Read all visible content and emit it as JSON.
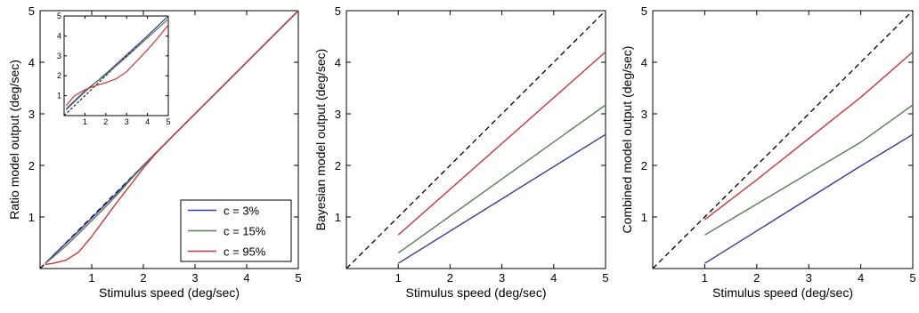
{
  "chart_data": [
    {
      "type": "line",
      "xlabel": "Stimulus speed (deg/sec)",
      "ylabel": "Ratio model output (deg/sec)",
      "xlim": [
        0,
        5
      ],
      "ylim": [
        0,
        5
      ],
      "xticks": [
        "1",
        "2",
        "3",
        "4",
        "5"
      ],
      "yticks": [
        "1",
        "2",
        "3",
        "4",
        "5"
      ],
      "grid": false,
      "identity_line": true,
      "legend": {
        "placement": "bottom-right",
        "entries": [
          "c = 3%",
          "c = 15%",
          "c = 95%"
        ]
      },
      "series": [
        {
          "name": "c = 3%",
          "color": "#3a3a9a",
          "x": [
            0.1,
            0.25,
            0.5,
            0.75,
            1.0,
            1.25,
            1.5,
            1.75,
            2.0,
            2.5,
            3.0,
            4.0,
            5.0
          ],
          "y": [
            0.1,
            0.25,
            0.49,
            0.73,
            0.98,
            1.23,
            1.48,
            1.74,
            2.0,
            2.5,
            3.0,
            4.0,
            5.0
          ]
        },
        {
          "name": "c = 15%",
          "color": "#5a7a5a",
          "x": [
            0.1,
            0.25,
            0.5,
            0.75,
            1.0,
            1.25,
            1.5,
            1.75,
            2.0,
            2.5,
            3.0,
            4.0,
            5.0
          ],
          "y": [
            0.1,
            0.22,
            0.44,
            0.68,
            0.93,
            1.18,
            1.44,
            1.72,
            1.99,
            2.5,
            3.0,
            4.0,
            5.0
          ]
        },
        {
          "name": "c = 95%",
          "color": "#c8373a",
          "x": [
            0.1,
            0.25,
            0.5,
            0.75,
            1.0,
            1.25,
            1.5,
            1.75,
            2.0,
            2.25,
            2.5,
            3.0,
            4.0,
            5.0
          ],
          "y": [
            0.08,
            0.1,
            0.16,
            0.32,
            0.62,
            0.96,
            1.3,
            1.62,
            1.95,
            2.24,
            2.5,
            3.0,
            4.0,
            5.0
          ]
        }
      ],
      "inset": {
        "xlim": [
          0,
          5
        ],
        "ylim": [
          0,
          5
        ],
        "xticks": [
          "1",
          "2",
          "3",
          "4",
          "5"
        ],
        "yticks": [
          "1",
          "2",
          "3",
          "4",
          "5"
        ],
        "identity_line": true,
        "series": [
          {
            "name": "c = 3%",
            "color": "#3a3a9a",
            "x": [
              0.1,
              1,
              2,
              3,
              4,
              5
            ],
            "y": [
              0.3,
              1.2,
              2.1,
              3.05,
              4.0,
              5.0
            ]
          },
          {
            "name": "c = 15%",
            "color": "#5a7a5a",
            "x": [
              0.1,
              1,
              2,
              3,
              4,
              5
            ],
            "y": [
              0.35,
              1.25,
              2.05,
              2.95,
              3.9,
              4.85
            ]
          },
          {
            "name": "c = 95%",
            "color": "#c8373a",
            "x": [
              0.1,
              0.5,
              1,
              1.5,
              2,
              2.5,
              3,
              3.5,
              4,
              4.5,
              5
            ],
            "y": [
              0.5,
              1.0,
              1.3,
              1.5,
              1.65,
              1.85,
              2.2,
              2.75,
              3.3,
              3.9,
              4.55
            ]
          }
        ]
      }
    },
    {
      "type": "line",
      "xlabel": "Stimulus speed (deg/sec)",
      "ylabel": "Bayesian model output (deg/sec)",
      "xlim": [
        0,
        5
      ],
      "ylim": [
        0,
        5
      ],
      "xticks": [
        "1",
        "2",
        "3",
        "4",
        "5"
      ],
      "yticks": [
        "1",
        "2",
        "3",
        "4",
        "5"
      ],
      "grid": false,
      "identity_line": true,
      "series": [
        {
          "name": "c = 3%",
          "color": "#3a3a9a",
          "x": [
            1,
            5
          ],
          "y": [
            0.1,
            2.6
          ]
        },
        {
          "name": "c = 15%",
          "color": "#5a7a5a",
          "x": [
            1,
            5
          ],
          "y": [
            0.3,
            3.17
          ]
        },
        {
          "name": "c = 95%",
          "color": "#c8373a",
          "x": [
            1,
            5
          ],
          "y": [
            0.65,
            4.2
          ]
        }
      ]
    },
    {
      "type": "line",
      "xlabel": "Stimulus speed (deg/sec)",
      "ylabel": "Combined model output (deg/sec)",
      "xlim": [
        0,
        5
      ],
      "ylim": [
        0,
        5
      ],
      "xticks": [
        "1",
        "2",
        "3",
        "4",
        "5"
      ],
      "yticks": [
        "1",
        "2",
        "3",
        "4",
        "5"
      ],
      "grid": false,
      "identity_line": true,
      "series": [
        {
          "name": "c = 3%",
          "color": "#3a3a9a",
          "x": [
            1,
            2,
            3,
            4,
            5
          ],
          "y": [
            0.1,
            0.73,
            1.36,
            1.99,
            2.6
          ]
        },
        {
          "name": "c = 15%",
          "color": "#5a7a5a",
          "x": [
            1,
            2,
            3,
            4,
            5
          ],
          "y": [
            0.65,
            1.25,
            1.85,
            2.45,
            3.17
          ]
        },
        {
          "name": "c = 95%",
          "color": "#c8373a",
          "x": [
            1,
            2,
            3,
            4,
            5
          ],
          "y": [
            0.95,
            1.72,
            2.52,
            3.32,
            4.2
          ]
        }
      ]
    }
  ]
}
